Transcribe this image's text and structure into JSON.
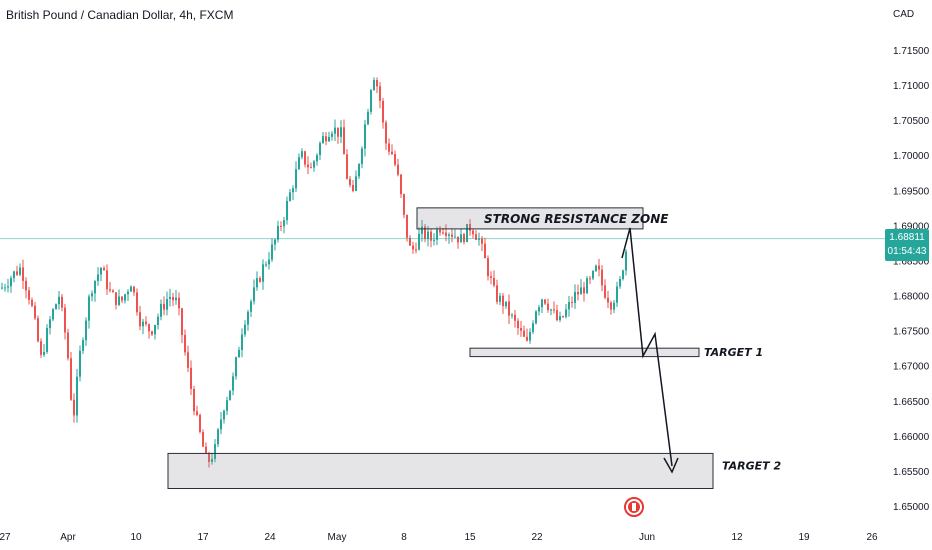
{
  "header": {
    "title": "British Pound / Canadian Dollar, 4h, FXCM",
    "currency": "CAD"
  },
  "price_badge": {
    "price": "1.68811",
    "countdown": "01:54:43",
    "color": "#26a69a"
  },
  "event_icon": "canada-flag-icon",
  "chart_data": {
    "type": "candlestick",
    "title": "British Pound / Canadian Dollar, 4h, FXCM",
    "ylim": [
      1.6475,
      1.7175
    ],
    "y_ticks": [
      "1.71500",
      "1.71000",
      "1.70500",
      "1.70000",
      "1.69500",
      "1.69000",
      "1.68500",
      "1.68000",
      "1.67500",
      "1.67000",
      "1.66500",
      "1.66000",
      "1.65500",
      "1.65000"
    ],
    "x_ticks": [
      "27",
      "Apr",
      "10",
      "17",
      "24",
      "May",
      "8",
      "15",
      "22",
      "Jun",
      "12",
      "19",
      "26"
    ],
    "up_color": "#26a69a",
    "down_color": "#ef5350",
    "current_price": 1.68811,
    "annotations": [
      {
        "label": "STRONG RESISTANCE ZONE",
        "y_low": 1.6895,
        "y_high": 1.6925
      },
      {
        "label": "TARGET 1",
        "y_low": 1.6713,
        "y_high": 1.6725
      },
      {
        "label": "TARGET 2",
        "y_low": 1.6525,
        "y_high": 1.6575
      }
    ],
    "grid": false
  }
}
